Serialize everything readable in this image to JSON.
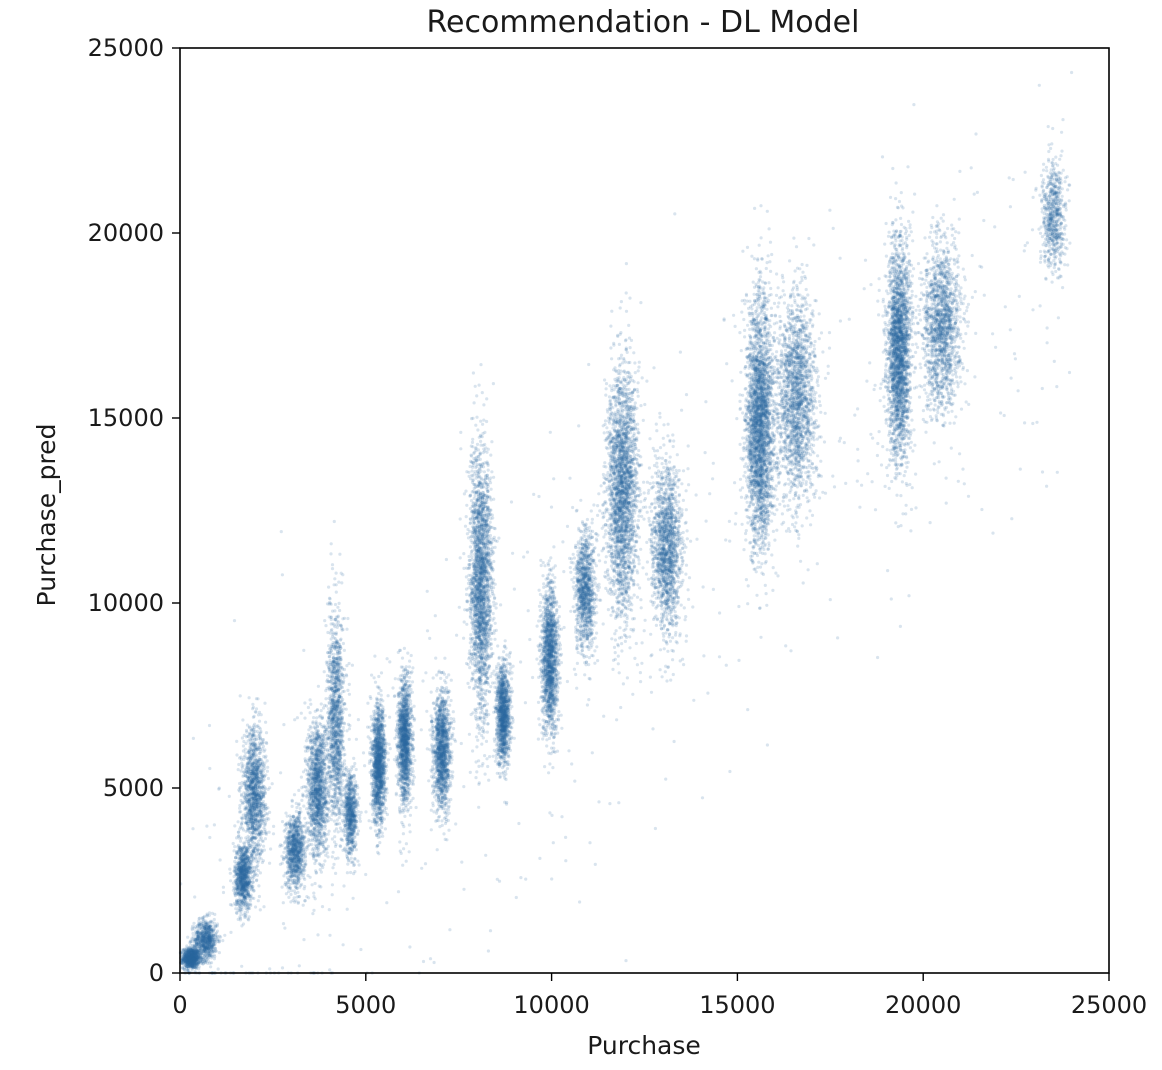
{
  "chart_data": {
    "type": "scatter",
    "title": "Recommendation - DL Model",
    "xlabel": "Purchase",
    "ylabel": "Purchase_pred",
    "xlim": [
      0,
      25000
    ],
    "ylim": [
      0,
      25000
    ],
    "xticks": [
      "0",
      "5000",
      "10000",
      "15000",
      "20000",
      "25000"
    ],
    "yticks": [
      "0",
      "5000",
      "10000",
      "15000",
      "20000",
      "25000"
    ],
    "grid": false,
    "legend": "none",
    "marker_color": "#2e6aa3",
    "marker_alpha": 0.18,
    "clusters": [
      {
        "x": 300,
        "x_spread": 250,
        "y": 400,
        "y_spread": 250,
        "count": 900
      },
      {
        "x": 700,
        "x_spread": 350,
        "y": 900,
        "y_spread": 500,
        "count": 700
      },
      {
        "x": 1700,
        "x_spread": 250,
        "y": 2600,
        "y_spread": 800,
        "count": 900
      },
      {
        "x": 2000,
        "x_spread": 350,
        "y": 4800,
        "y_spread": 1600,
        "count": 1300
      },
      {
        "x": 3100,
        "x_spread": 300,
        "y": 3300,
        "y_spread": 900,
        "count": 900
      },
      {
        "x": 3700,
        "x_spread": 300,
        "y": 5000,
        "y_spread": 1700,
        "count": 1300
      },
      {
        "x": 4200,
        "x_spread": 250,
        "y": 6800,
        "y_spread": 2600,
        "count": 1200
      },
      {
        "x": 4600,
        "x_spread": 200,
        "y": 4300,
        "y_spread": 1000,
        "count": 700
      },
      {
        "x": 5350,
        "x_spread": 200,
        "y": 5600,
        "y_spread": 1400,
        "count": 1400
      },
      {
        "x": 6050,
        "x_spread": 200,
        "y": 6300,
        "y_spread": 1500,
        "count": 1400
      },
      {
        "x": 7050,
        "x_spread": 250,
        "y": 6000,
        "y_spread": 1400,
        "count": 1300
      },
      {
        "x": 8100,
        "x_spread": 350,
        "y": 10500,
        "y_spread": 3200,
        "count": 2200
      },
      {
        "x": 8700,
        "x_spread": 200,
        "y": 7000,
        "y_spread": 1200,
        "count": 1200
      },
      {
        "x": 9950,
        "x_spread": 250,
        "y": 8500,
        "y_spread": 1800,
        "count": 1500
      },
      {
        "x": 10900,
        "x_spread": 300,
        "y": 10300,
        "y_spread": 1500,
        "count": 1000
      },
      {
        "x": 11900,
        "x_spread": 450,
        "y": 13000,
        "y_spread": 3000,
        "count": 2400
      },
      {
        "x": 13100,
        "x_spread": 450,
        "y": 11500,
        "y_spread": 2000,
        "count": 1500
      },
      {
        "x": 15600,
        "x_spread": 400,
        "y": 14800,
        "y_spread": 3000,
        "count": 2800
      },
      {
        "x": 16600,
        "x_spread": 600,
        "y": 15500,
        "y_spread": 2500,
        "count": 1800
      },
      {
        "x": 19350,
        "x_spread": 350,
        "y": 16800,
        "y_spread": 2600,
        "count": 2400
      },
      {
        "x": 20500,
        "x_spread": 550,
        "y": 17500,
        "y_spread": 2000,
        "count": 1500
      },
      {
        "x": 23500,
        "x_spread": 350,
        "y": 20500,
        "y_spread": 1300,
        "count": 600
      }
    ],
    "outliers": 600
  }
}
